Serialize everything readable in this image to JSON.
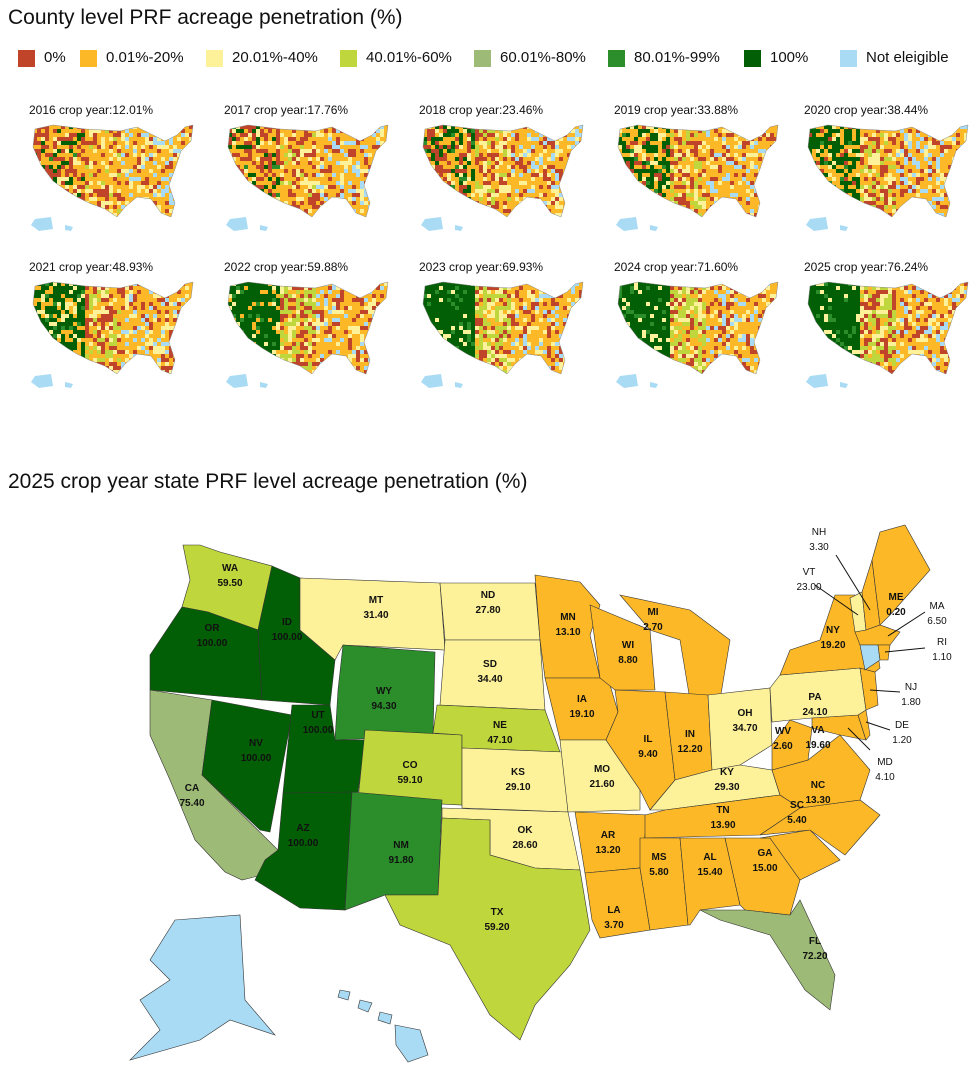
{
  "county_section": {
    "title": "County level PRF acreage penetration (%)"
  },
  "legend": [
    {
      "label": "0%",
      "color": "#c0442a"
    },
    {
      "label": "0.01%-20%",
      "color": "#fcb827"
    },
    {
      "label": "20.01%-40%",
      "color": "#fdf29a"
    },
    {
      "label": "40.01%-60%",
      "color": "#bfd63c"
    },
    {
      "label": "60.01%-80%",
      "color": "#9dbb76"
    },
    {
      "label": "80.01%-99%",
      "color": "#2b8e2b"
    },
    {
      "label": "100%",
      "color": "#035f05"
    },
    {
      "label": "Not eleigible",
      "color": "#a9dbf5"
    }
  ],
  "panels": [
    {
      "title": "2016 crop year:12.01%",
      "value": 12.01
    },
    {
      "title": "2017 crop year:17.76%",
      "value": 17.76
    },
    {
      "title": "2018 crop year:23.46%",
      "value": 23.46
    },
    {
      "title": "2019 crop year:33.88%",
      "value": 33.88
    },
    {
      "title": "2020 crop year:38.44%",
      "value": 38.44
    },
    {
      "title": "2021 crop year:48.93%",
      "value": 48.93
    },
    {
      "title": "2022 crop year:59.88%",
      "value": 59.88
    },
    {
      "title": "2023 crop year:69.93%",
      "value": 69.93
    },
    {
      "title": "2024 crop year:71.60%",
      "value": 71.6
    },
    {
      "title": "2025 crop year:76.24%",
      "value": 76.24
    }
  ],
  "state_section": {
    "title": "2025 crop year state PRF level acreage penetration (%)"
  },
  "states": [
    {
      "abbr": "WA",
      "value": "59.50"
    },
    {
      "abbr": "OR",
      "value": "100.00"
    },
    {
      "abbr": "CA",
      "value": "75.40"
    },
    {
      "abbr": "ID",
      "value": "100.00"
    },
    {
      "abbr": "NV",
      "value": "100.00"
    },
    {
      "abbr": "UT",
      "value": "100.00"
    },
    {
      "abbr": "AZ",
      "value": "100.00"
    },
    {
      "abbr": "MT",
      "value": "31.40"
    },
    {
      "abbr": "WY",
      "value": "94.30"
    },
    {
      "abbr": "CO",
      "value": "59.10"
    },
    {
      "abbr": "NM",
      "value": "91.80"
    },
    {
      "abbr": "ND",
      "value": "27.80"
    },
    {
      "abbr": "SD",
      "value": "34.40"
    },
    {
      "abbr": "NE",
      "value": "47.10"
    },
    {
      "abbr": "KS",
      "value": "29.10"
    },
    {
      "abbr": "OK",
      "value": "28.60"
    },
    {
      "abbr": "TX",
      "value": "59.20"
    },
    {
      "abbr": "MN",
      "value": "13.10"
    },
    {
      "abbr": "IA",
      "value": "19.10"
    },
    {
      "abbr": "MO",
      "value": "21.60"
    },
    {
      "abbr": "AR",
      "value": "13.20"
    },
    {
      "abbr": "LA",
      "value": "3.70"
    },
    {
      "abbr": "WI",
      "value": "8.80"
    },
    {
      "abbr": "MI",
      "value": "2.70"
    },
    {
      "abbr": "IL",
      "value": "9.40"
    },
    {
      "abbr": "IN",
      "value": "12.20"
    },
    {
      "abbr": "OH",
      "value": "34.70"
    },
    {
      "abbr": "KY",
      "value": "29.30"
    },
    {
      "abbr": "TN",
      "value": "13.90"
    },
    {
      "abbr": "MS",
      "value": "5.80"
    },
    {
      "abbr": "AL",
      "value": "15.40"
    },
    {
      "abbr": "GA",
      "value": "15.00"
    },
    {
      "abbr": "FL",
      "value": "72.20"
    },
    {
      "abbr": "SC",
      "value": "5.40"
    },
    {
      "abbr": "NC",
      "value": "13.30"
    },
    {
      "abbr": "VA",
      "value": "19.60"
    },
    {
      "abbr": "WV",
      "value": "2.60"
    },
    {
      "abbr": "PA",
      "value": "24.10"
    },
    {
      "abbr": "NY",
      "value": "19.20"
    },
    {
      "abbr": "VT",
      "value": "23.00"
    },
    {
      "abbr": "NH",
      "value": "3.30"
    },
    {
      "abbr": "ME",
      "value": "0.20"
    },
    {
      "abbr": "MA",
      "value": "6.50"
    },
    {
      "abbr": "RI",
      "value": "1.10"
    },
    {
      "abbr": "NJ",
      "value": "1.80"
    },
    {
      "abbr": "DE",
      "value": "1.20"
    },
    {
      "abbr": "MD",
      "value": "4.10"
    }
  ]
}
